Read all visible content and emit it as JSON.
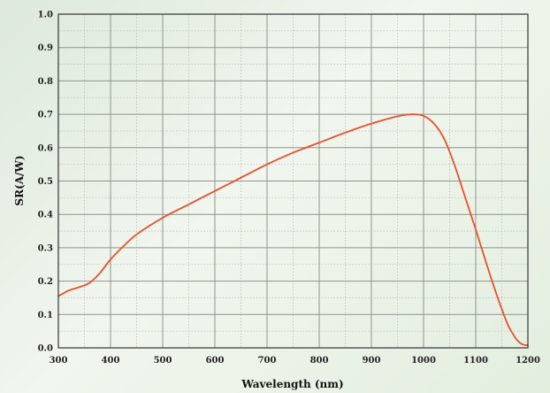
{
  "chart_data": {
    "type": "line",
    "xlabel": "Wavelength (nm)",
    "ylabel": "SR(A/W)",
    "xlim": [
      300,
      1200
    ],
    "ylim": [
      0.0,
      1.0
    ],
    "x_ticks": [
      300,
      400,
      500,
      600,
      700,
      800,
      900,
      1000,
      1100,
      1200
    ],
    "x_tick_labels": [
      "300",
      "400",
      "500",
      "600",
      "700",
      "800",
      "900",
      "1000",
      "1100",
      "1200"
    ],
    "y_ticks": [
      0.0,
      0.1,
      0.2,
      0.3,
      0.4,
      0.5,
      0.6,
      0.7,
      0.8,
      0.9,
      1.0
    ],
    "y_tick_labels": [
      "0.0",
      "0.1",
      "0.2",
      "0.3",
      "0.4",
      "0.5",
      "0.6",
      "0.7",
      "0.8",
      "0.9",
      "1.0"
    ],
    "grid": true,
    "legend": "none",
    "series": [
      {
        "color": "#e8502a",
        "x": [
          300,
          320,
          340,
          360,
          380,
          400,
          425,
          450,
          500,
          550,
          600,
          650,
          700,
          750,
          800,
          850,
          900,
          940,
          960,
          980,
          1000,
          1020,
          1040,
          1060,
          1080,
          1100,
          1120,
          1140,
          1160,
          1170,
          1180,
          1190,
          1200
        ],
        "y": [
          0.155,
          0.172,
          0.182,
          0.195,
          0.225,
          0.265,
          0.305,
          0.34,
          0.39,
          0.43,
          0.47,
          0.51,
          0.55,
          0.585,
          0.615,
          0.645,
          0.672,
          0.69,
          0.697,
          0.7,
          0.695,
          0.672,
          0.625,
          0.545,
          0.45,
          0.355,
          0.255,
          0.16,
          0.075,
          0.045,
          0.022,
          0.01,
          0.008
        ]
      }
    ]
  }
}
